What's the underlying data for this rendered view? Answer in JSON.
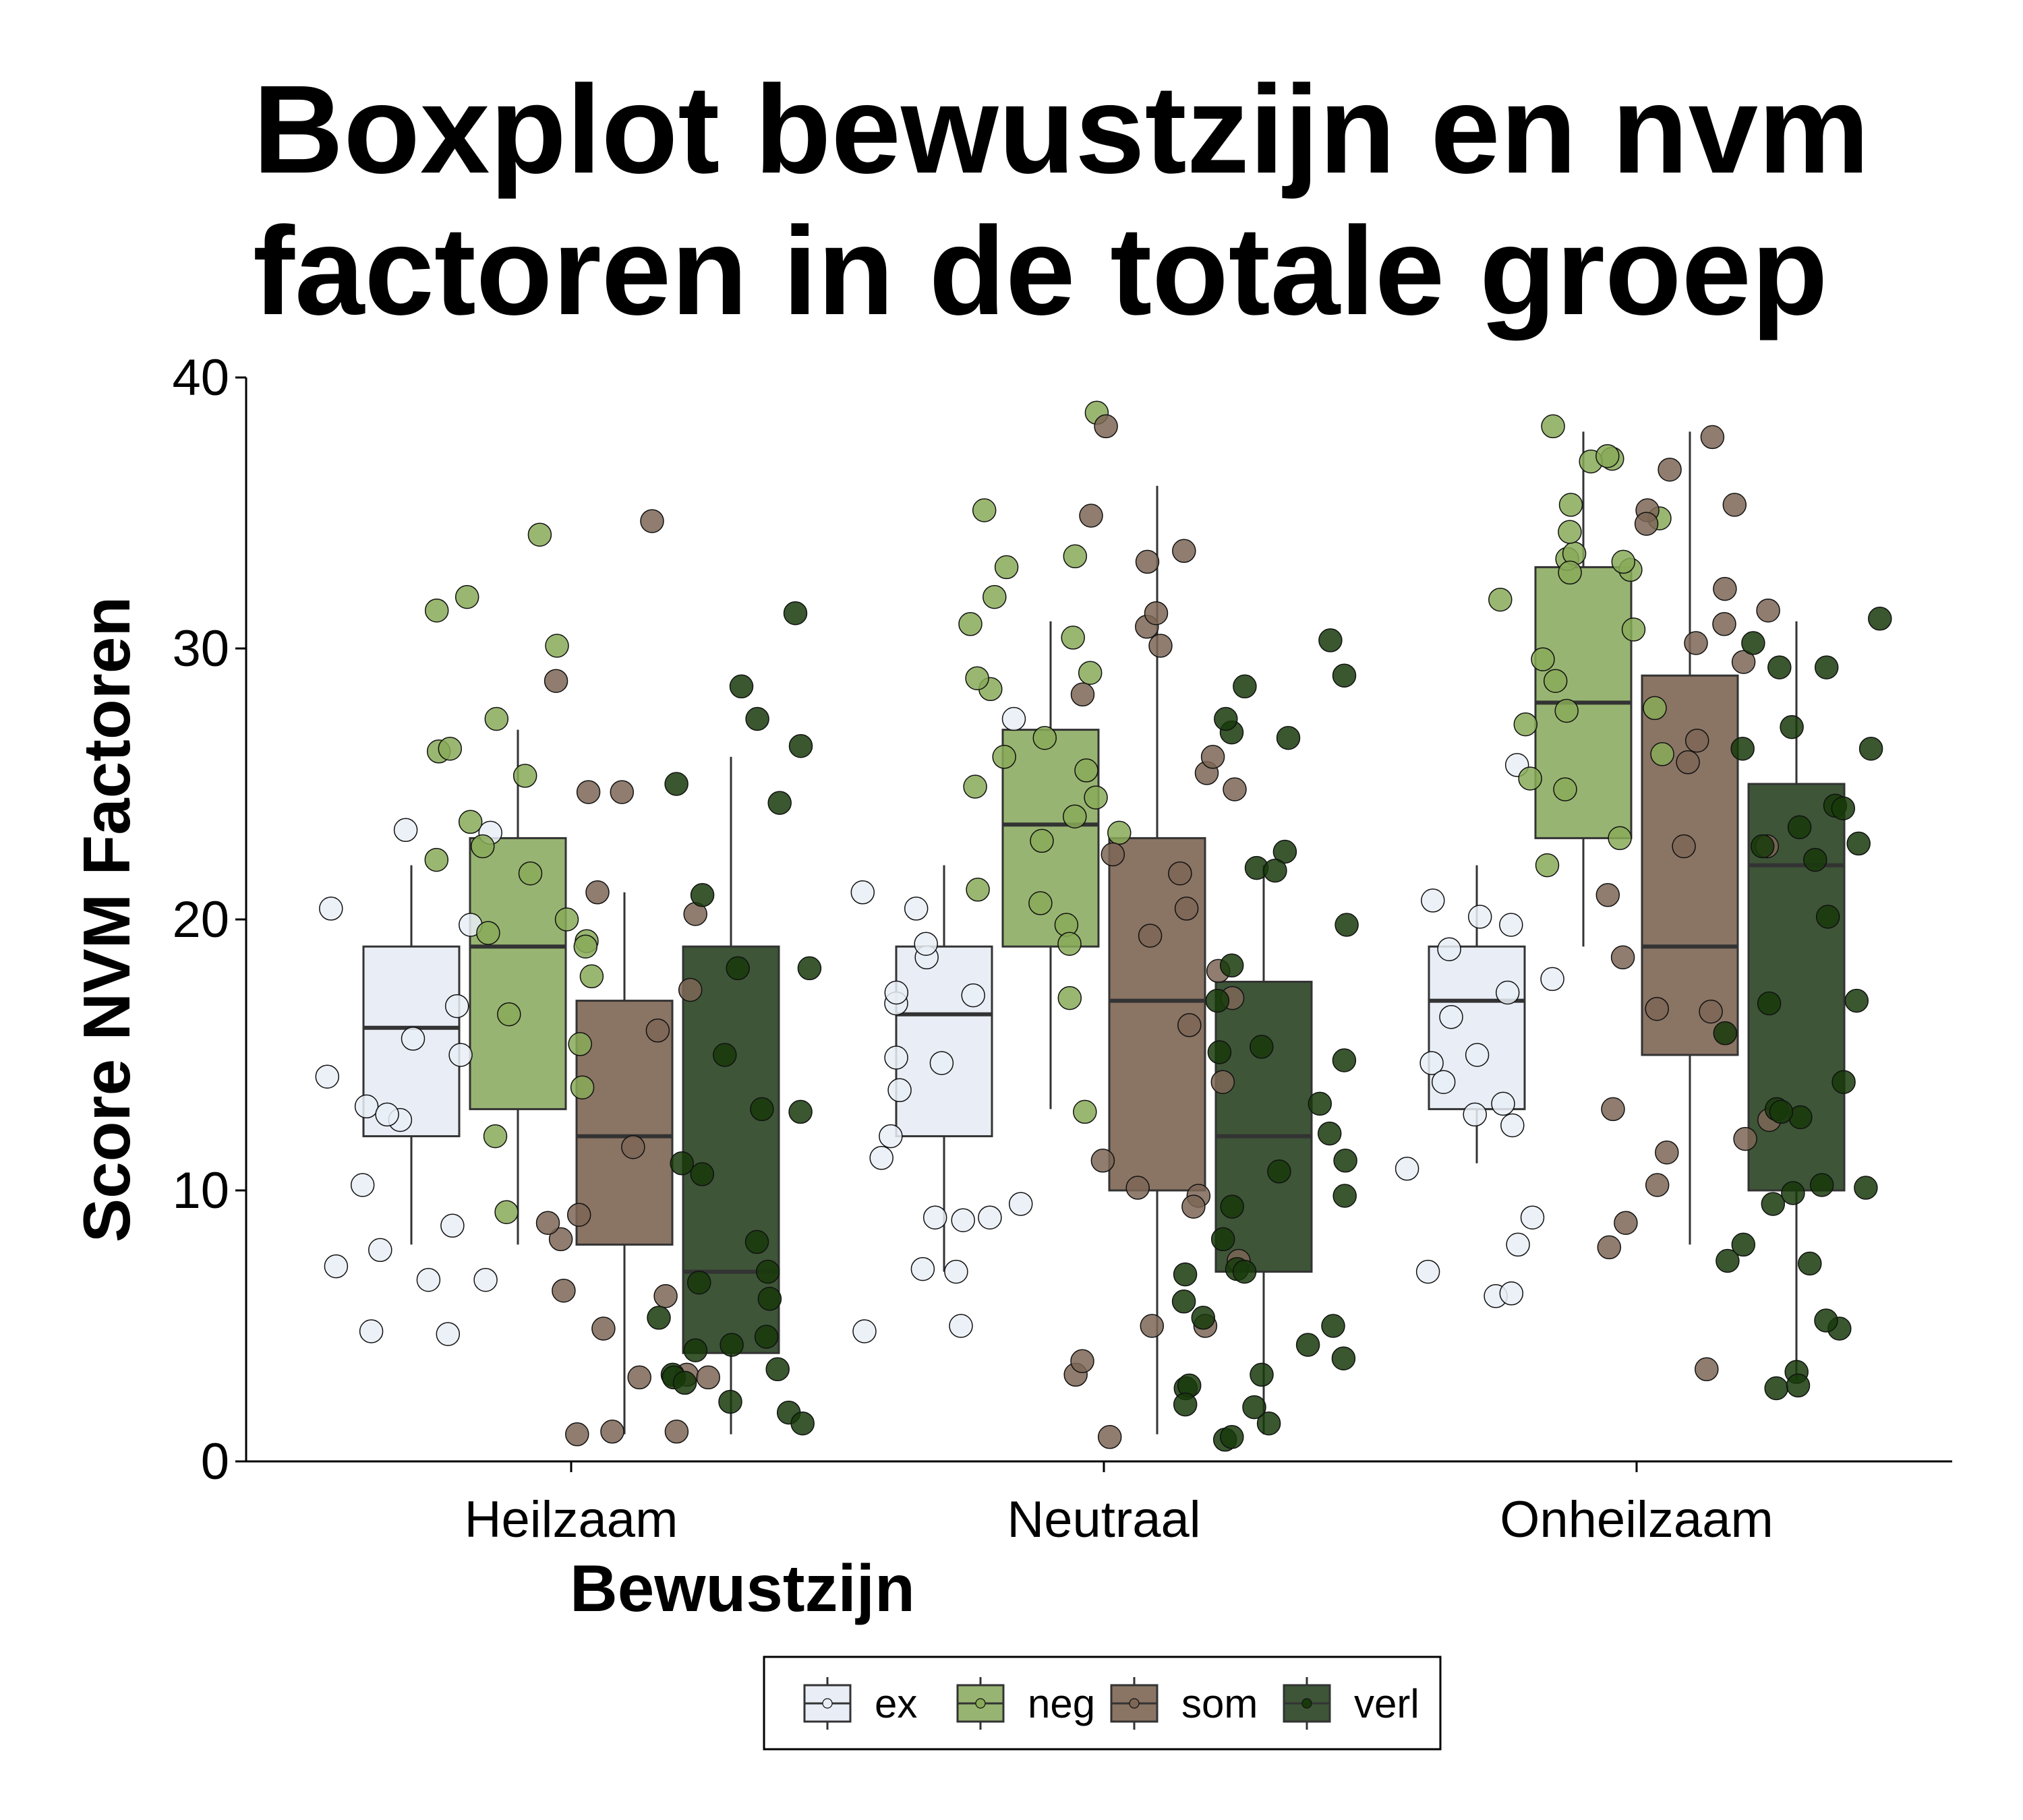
{
  "chart_data": {
    "type": "boxplot",
    "title_lines": [
      "Boxplot bewustzijn en nvm",
      "factoren in de totale groep"
    ],
    "xlabel": "Bewustzijn",
    "ylabel": "Score NVM Factoren",
    "ylim": [
      0,
      40
    ],
    "yticks": [
      "0",
      "10",
      "20",
      "30",
      "40"
    ],
    "categories": [
      "Heilzaam",
      "Neutraal",
      "Onheilzaam"
    ],
    "grid": false,
    "legend_position": "bottom",
    "colors": {
      "ex": "#e9eef6",
      "neg": "#98b472",
      "som": "#8a7464",
      "verl": "#3e5538"
    },
    "point_colors": {
      "ex": "#e9eef6",
      "neg": "#88aa58",
      "som": "#7d6656",
      "verl": "#183a0a"
    },
    "series": [
      {
        "name": "ex",
        "boxes": [
          {
            "category": "Heilzaam",
            "min": 8,
            "q1": 12,
            "median": 16,
            "q3": 19,
            "max": 22
          },
          {
            "category": "Neutraal",
            "min": 7,
            "q1": 12,
            "median": 16.5,
            "q3": 19,
            "max": 22
          },
          {
            "category": "Onheilzaam",
            "min": 11,
            "q1": 13,
            "median": 17,
            "q3": 19,
            "max": 22
          }
        ],
        "points": [
          [
            14.2,
            16.8,
            12.6,
            10.2,
            8.7,
            7.8,
            6.7,
            4.8,
            23.2,
            20.4,
            19.8,
            15.0,
            13.1,
            12.8,
            7.2,
            4.7,
            23.3,
            15.6,
            6.7
          ],
          [
            18.6,
            16.9,
            13.7,
            12.0,
            9.0,
            7.0,
            27.4,
            17.3,
            14.9,
            11.2,
            9.0,
            8.9,
            17.2,
            21.0,
            19.1,
            9.5,
            7.1,
            5.0,
            4.8,
            20.4,
            14.7
          ],
          [
            19.8,
            16.4,
            14.7,
            13.2,
            6.1,
            25.7,
            20.1,
            17.8,
            17.3,
            15.0,
            12.8,
            10.8,
            7.0,
            8.0,
            20.7,
            18.9,
            14.0,
            12.4,
            6.2,
            9.0
          ]
        ]
      },
      {
        "name": "neg",
        "boxes": [
          {
            "category": "Heilzaam",
            "min": 8,
            "q1": 13,
            "median": 19,
            "q3": 23,
            "max": 27
          },
          {
            "category": "Neutraal",
            "min": 13,
            "q1": 19,
            "median": 23.5,
            "q3": 27,
            "max": 31
          },
          {
            "category": "Onheilzaam",
            "min": 19,
            "q1": 23,
            "median": 28,
            "q3": 33,
            "max": 38
          }
        ],
        "points": [
          [
            34.2,
            31.4,
            31.9,
            30.1,
            27.4,
            26.2,
            23.6,
            22.7,
            20.0,
            19.5,
            17.9,
            16.5,
            15.4,
            13.8,
            12.0,
            9.2,
            21.7,
            19.2,
            26.3,
            25.3,
            22.2,
            19.0
          ],
          [
            35.1,
            33.0,
            31.9,
            28.5,
            26.0,
            25.5,
            24.9,
            23.8,
            22.9,
            21.1,
            20.6,
            19.8,
            17.1,
            12.9,
            30.4,
            28.9,
            26.7,
            24.5,
            19.1,
            38.7,
            33.4,
            30.9,
            29.1,
            23.2
          ],
          [
            38.2,
            37.0,
            35.3,
            34.8,
            33.3,
            31.8,
            29.6,
            28.8,
            27.2,
            26.1,
            24.8,
            23.0,
            22.0,
            36.9,
            33.5,
            32.9,
            30.7,
            27.7,
            25.2,
            37.1,
            34.3,
            33.2,
            32.8,
            27.8
          ]
        ]
      },
      {
        "name": "som",
        "boxes": [
          {
            "category": "Heilzaam",
            "min": 1,
            "q1": 8,
            "median": 12,
            "q3": 17,
            "max": 21
          },
          {
            "category": "Neutraal",
            "min": 1,
            "q1": 10,
            "median": 17,
            "q3": 23,
            "max": 36
          },
          {
            "category": "Onheilzaam",
            "min": 8,
            "q1": 15,
            "median": 19,
            "q3": 29,
            "max": 38
          }
        ],
        "points": [
          [
            28.8,
            24.7,
            8.2,
            6.3,
            6.1,
            3.1,
            1.0,
            4.9,
            1.1,
            1.1,
            34.7,
            24.7,
            21.0,
            17.4,
            15.9,
            11.6,
            9.1,
            8.8,
            3.2,
            3.1,
            20.2
          ],
          [
            34.9,
            30.8,
            28.3,
            25.4,
            21.7,
            9.8,
            5.0,
            3.2,
            38.2,
            33.2,
            31.3,
            30.1,
            17.1,
            16.1,
            9.4,
            3.7,
            33.6,
            24.8,
            22.4,
            18.1,
            14.0,
            11.1,
            7.4,
            0.9,
            26.0,
            20.4,
            19.4,
            10.1,
            5.0
          ],
          [
            30.9,
            10.2,
            8.8,
            35.3,
            35.1,
            30.2,
            29.5,
            22.7,
            12.6,
            11.9,
            37.8,
            34.6,
            31.4,
            26.6,
            22.7,
            20.9,
            18.6,
            16.7,
            13.0,
            11.4,
            36.6,
            32.2,
            25.8,
            16.6,
            7.9,
            3.4
          ]
        ]
      },
      {
        "name": "verl",
        "boxes": [
          {
            "category": "Heilzaam",
            "min": 1,
            "q1": 4,
            "median": 7,
            "q3": 19,
            "max": 26
          },
          {
            "category": "Neutraal",
            "min": 1,
            "q1": 7,
            "median": 12,
            "q3": 17.7,
            "max": 22
          },
          {
            "category": "Onheilzaam",
            "min": 3,
            "q1": 10,
            "median": 22,
            "q3": 25,
            "max": 31
          }
        ],
        "points": [
          [
            28.6,
            27.4,
            26.4,
            24.3,
            11.0,
            7.0,
            6.0,
            4.1,
            5.3,
            3.2,
            3.1,
            3.4,
            25.0,
            18.2,
            12.9,
            6.6,
            4.6,
            4.3,
            2.9,
            1.8,
            1.4,
            31.3,
            20.9,
            18.2,
            15.0,
            13.0,
            10.6,
            8.1,
            2.2
          ],
          [
            30.3,
            28.6,
            26.9,
            21.9,
            19.8,
            15.1,
            7.1,
            5.3,
            3.8,
            26.7,
            22.5,
            15.3,
            10.7,
            9.4,
            6.9,
            2.7,
            1.4,
            0.8,
            27.4,
            21.8,
            18.3,
            14.8,
            12.1,
            9.8,
            7.0,
            5.9,
            4.3,
            2.8,
            2.1,
            0.9,
            29.0,
            17.0,
            13.2,
            11.1,
            8.2,
            5.0,
            3.2,
            2.0
          ],
          [
            30.2,
            29.3,
            26.3,
            24.2,
            22.8,
            10.1,
            9.5,
            2.7,
            3.3,
            27.1,
            22.7,
            17.0,
            13.0,
            9.9,
            8.0,
            31.1,
            23.4,
            20.1,
            12.7,
            4.9,
            7.4,
            29.3,
            26.3,
            10.2,
            5.2,
            2.8,
            24.1,
            22.2,
            16.9,
            15.8,
            12.9,
            14.0,
            7.3
          ]
        ]
      }
    ]
  }
}
